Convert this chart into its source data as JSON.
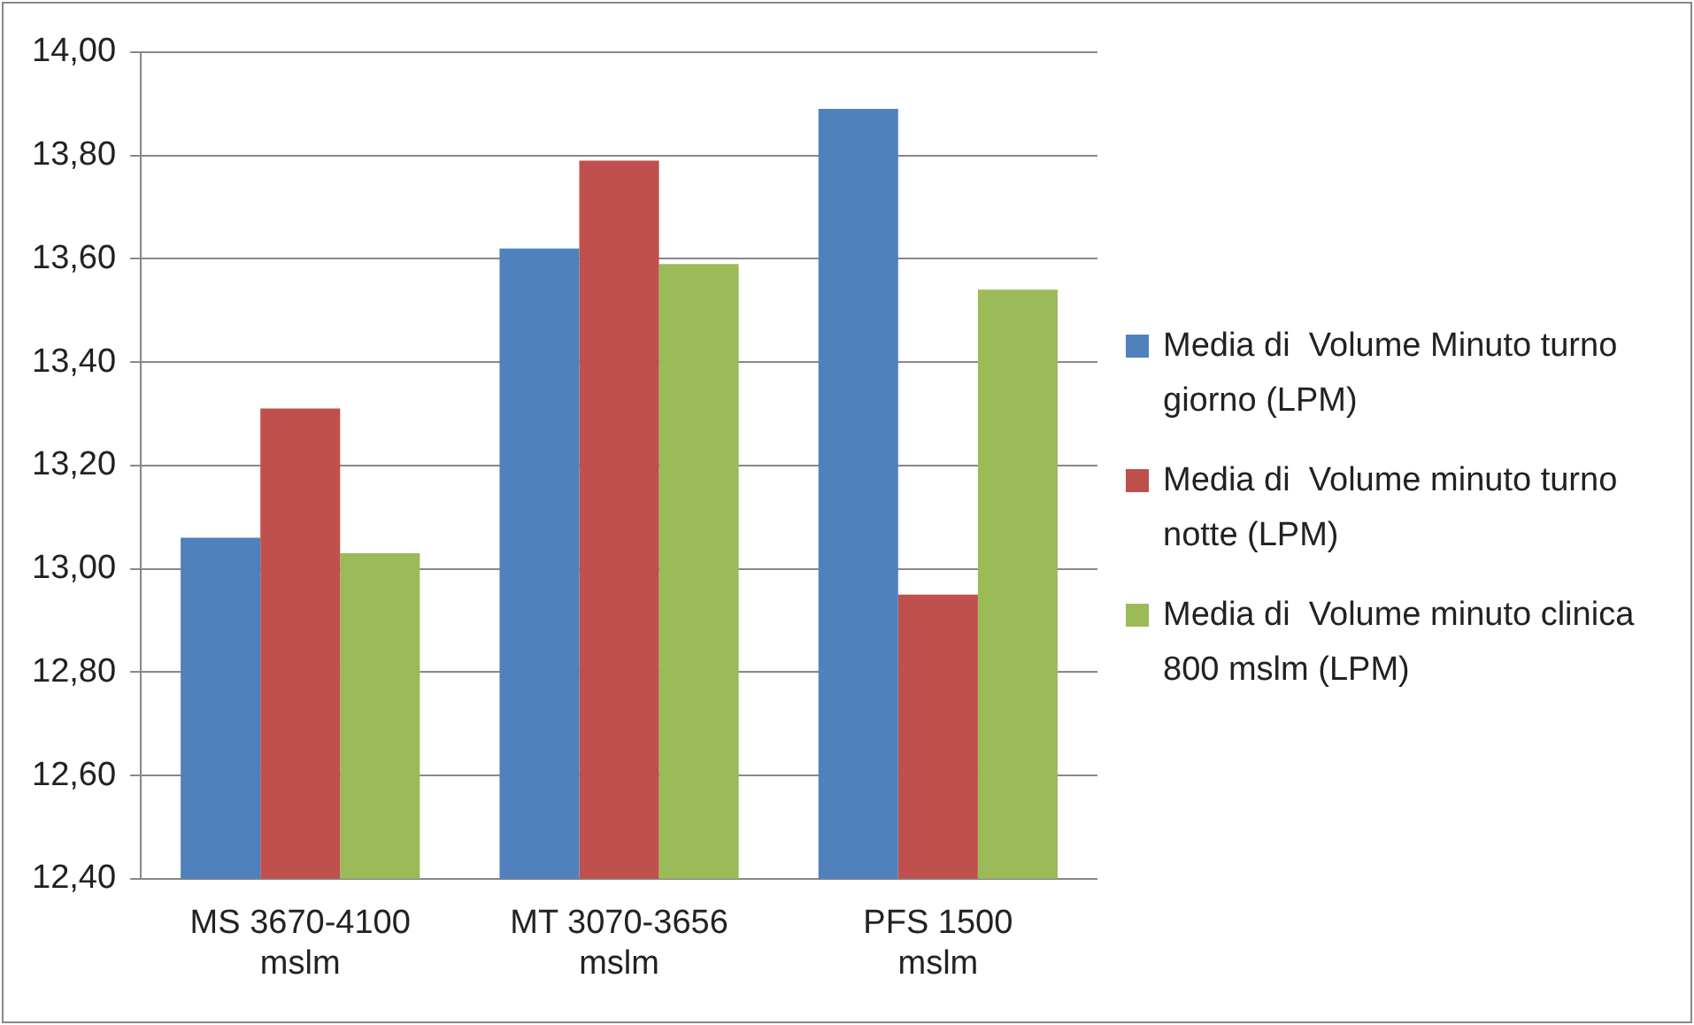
{
  "chart_data": {
    "type": "bar",
    "categories": [
      "MS 3670-4100 mslm",
      "MT 3070-3656 mslm",
      "PFS 1500 mslm"
    ],
    "series": [
      {
        "name": "Media di  Volume Minuto turno giorno (LPM)",
        "color": "#4f81bd",
        "values": [
          13.06,
          13.62,
          13.89
        ]
      },
      {
        "name": "Media di  Volume minuto turno notte (LPM)",
        "color": "#c0504d",
        "values": [
          13.31,
          13.79,
          12.95
        ]
      },
      {
        "name": "Media di  Volume minuto clinica 800 mslm (LPM)",
        "color": "#9bbb59",
        "values": [
          13.03,
          13.59,
          13.54
        ]
      }
    ],
    "ylim": [
      12.4,
      14.0
    ],
    "yticks": [
      {
        "value": 12.4,
        "label": "12,40"
      },
      {
        "value": 12.6,
        "label": "12,60"
      },
      {
        "value": 12.8,
        "label": "12,80"
      },
      {
        "value": 13.0,
        "label": "13,00"
      },
      {
        "value": 13.2,
        "label": "13,20"
      },
      {
        "value": 13.4,
        "label": "13,40"
      },
      {
        "value": 13.6,
        "label": "13,60"
      },
      {
        "value": 13.8,
        "label": "13,80"
      },
      {
        "value": 14.0,
        "label": "14,00"
      }
    ],
    "grid": "y",
    "legend": "right"
  }
}
